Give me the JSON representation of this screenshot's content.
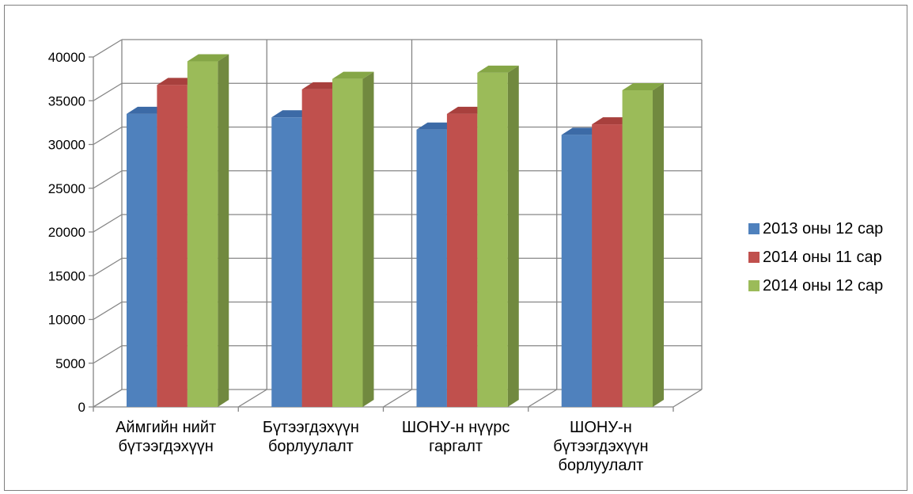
{
  "chart_data": {
    "type": "bar",
    "categories": [
      "Аймгийн нийт бүтээгдэхүүн",
      "Бүтээгдэхүүн борлуулалт",
      "ШОНУ-н нүүрс гаргалт",
      "ШОНУ-н бүтээгдэхүүн борлуулалт"
    ],
    "series": [
      {
        "name": "2013 оны 12 сар",
        "color": "#4f81bd",
        "side": "#385d8a",
        "values": [
          33500,
          33100,
          31700,
          31100
        ]
      },
      {
        "name": "2014 оны 11 сар",
        "color": "#c0504d",
        "side": "#8c3836",
        "values": [
          36800,
          36300,
          33500,
          32300
        ]
      },
      {
        "name": "2014 оны 12 сар",
        "color": "#9bbb59",
        "side": "#71893f",
        "values": [
          39500,
          37500,
          38200,
          36200
        ]
      }
    ],
    "ylim": [
      0,
      40000
    ],
    "yticks": [
      "0",
      "5000",
      "10000",
      "15000",
      "20000",
      "25000",
      "30000",
      "35000",
      "40000"
    ],
    "grid": true,
    "legend": "right",
    "three_d": true
  }
}
